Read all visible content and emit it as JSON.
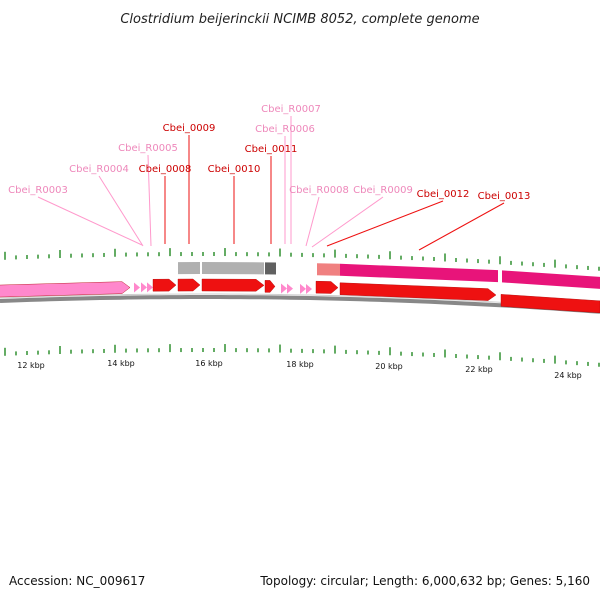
{
  "title": "Clostridium beijerinckii NCIMB 8052, complete genome",
  "footer": {
    "accession": "Accession: NC_009617",
    "summary": "Topology: circular; Length: 6,000,632 bp; Genes: 5,160"
  },
  "colors": {
    "cds": "#ee1111",
    "cds_label": "#cc0000",
    "rna": "#ff88cc",
    "rna_label": "#ee88bb",
    "backbone": "#888888",
    "tick": "#228822",
    "hit_gray": "#b0b0b0",
    "hit_dark": "#606060",
    "hit_pink": "#e8147a",
    "hit_salmon": "#f08080",
    "leader": "#ff99cc"
  },
  "axis": {
    "unit": "kbp",
    "labels": [
      "12 kbp",
      "14 kbp",
      "16 kbp",
      "18 kbp",
      "20 kbp",
      "22 kbp",
      "24 kbp"
    ]
  },
  "labels": [
    {
      "id": "Cbei_R0003",
      "type": "rna"
    },
    {
      "id": "Cbei_R0004",
      "type": "rna"
    },
    {
      "id": "Cbei_R0005",
      "type": "rna"
    },
    {
      "id": "Cbei_0008",
      "type": "cds"
    },
    {
      "id": "Cbei_0009",
      "type": "cds"
    },
    {
      "id": "Cbei_0010",
      "type": "cds"
    },
    {
      "id": "Cbei_R0007",
      "type": "rna"
    },
    {
      "id": "Cbei_R0006",
      "type": "rna"
    },
    {
      "id": "Cbei_0011",
      "type": "cds"
    },
    {
      "id": "Cbei_R0008",
      "type": "rna"
    },
    {
      "id": "Cbei_R0009",
      "type": "rna"
    },
    {
      "id": "Cbei_0012",
      "type": "cds"
    },
    {
      "id": "Cbei_0013",
      "type": "cds"
    }
  ]
}
